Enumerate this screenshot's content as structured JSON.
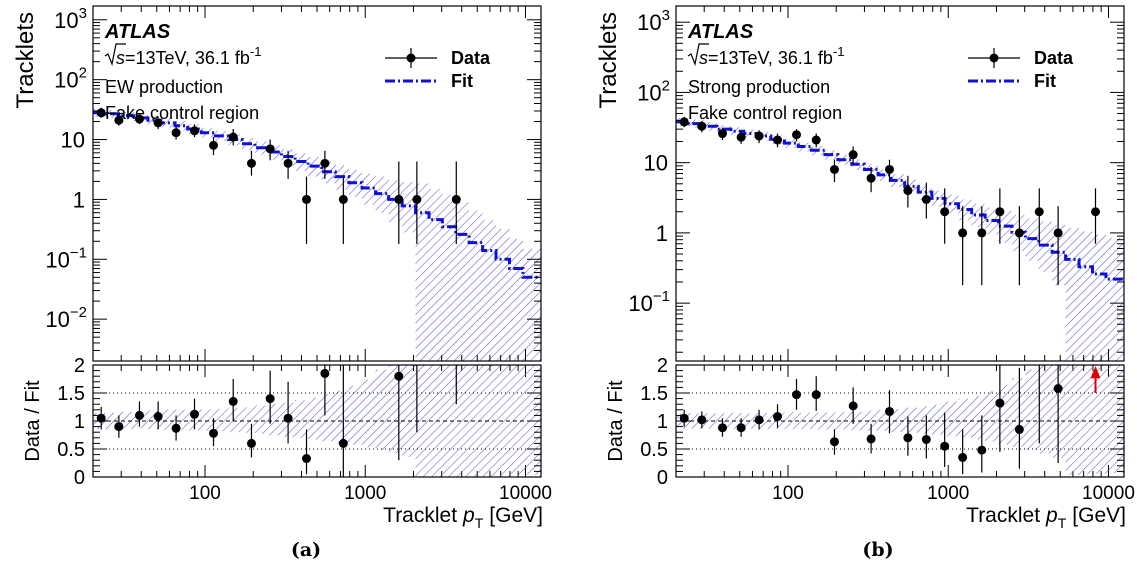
{
  "chart_data": [
    {
      "type": "scatter",
      "caption": "(a)",
      "atlas": "ATLAS",
      "sqrt_s": "s",
      "energy": "=13TeV, 36.1 fb",
      "lumi_sup": "-1",
      "process": "EW production",
      "region": "Fake control region",
      "legend": {
        "data": "Data",
        "fit": "Fit"
      },
      "ylabel": "Tracklets",
      "ratio_ylabel": "Data / Fit",
      "xlabel_main": "Tracklet",
      "xlabel_var": "p",
      "xlabel_sub": "T",
      "xlabel_unit": "[GeV]",
      "x_log": true,
      "y_log": true,
      "xlim": [
        20,
        12500
      ],
      "ylim": [
        0.002,
        1700
      ],
      "ratio_ylim": [
        0,
        2
      ],
      "y_ticks": [
        {
          "v": 0.01,
          "m": "10",
          "e": "−2"
        },
        {
          "v": 0.1,
          "m": "10",
          "e": "−1"
        },
        {
          "v": 1,
          "m": "1",
          "e": ""
        },
        {
          "v": 10,
          "m": "10",
          "e": ""
        },
        {
          "v": 100,
          "m": "10",
          "e": "2"
        },
        {
          "v": 1000,
          "m": "10",
          "e": "3"
        }
      ],
      "x_ticks": [
        {
          "v": 100,
          "label": "100"
        },
        {
          "v": 1000,
          "label": "1000"
        },
        {
          "v": 10000,
          "label": "10000"
        }
      ],
      "ratio_ticks": [
        {
          "v": 0,
          "label": "0"
        },
        {
          "v": 0.5,
          "label": "0.5"
        },
        {
          "v": 1,
          "label": "1"
        },
        {
          "v": 1.5,
          "label": "1.5"
        },
        {
          "v": 2,
          "label": "2"
        }
      ],
      "fit_edges": [
        20,
        24,
        30,
        36,
        44,
        53,
        65,
        78,
        95,
        116,
        140,
        170,
        205,
        250,
        300,
        365,
        440,
        535,
        650,
        790,
        955,
        1160,
        1400,
        1700,
        2060,
        2500,
        3030,
        3670,
        4450,
        5400,
        6550,
        7950,
        9640,
        12500
      ],
      "fit_values": [
        28,
        27,
        25,
        23,
        21,
        19,
        17,
        15,
        13,
        11.5,
        10,
        8.5,
        7.3,
        6.2,
        5.2,
        4.3,
        3.6,
        2.9,
        2.4,
        1.9,
        1.55,
        1.25,
        1.0,
        0.78,
        0.6,
        0.46,
        0.35,
        0.26,
        0.19,
        0.14,
        0.1,
        0.07,
        0.05
      ],
      "fit_band_lo": [
        24,
        23,
        21.5,
        20,
        18,
        16,
        14.3,
        12.5,
        10.8,
        9.4,
        8,
        6.7,
        5.6,
        4.6,
        3.7,
        3.0,
        2.4,
        1.85,
        1.45,
        1.1,
        0.82,
        0.6,
        0.42,
        0.28,
        0.002,
        0.002,
        0.002,
        0.002,
        0.002,
        0.002,
        0.002,
        0.002,
        0.002
      ],
      "fit_band_hi": [
        32,
        31,
        29,
        27,
        25,
        23,
        20.5,
        18,
        15.7,
        14,
        12.3,
        10.6,
        9.3,
        8.1,
        6.9,
        5.9,
        5.1,
        4.3,
        3.7,
        3.1,
        2.7,
        2.4,
        2.1,
        1.95,
        1.85,
        1.5,
        1.2,
        0.9,
        0.65,
        0.45,
        0.32,
        0.22,
        0.15
      ],
      "data_points": [
        {
          "x": 22.5,
          "y": 28,
          "lo": 23,
          "hi": 34
        },
        {
          "x": 29,
          "y": 21,
          "lo": 17,
          "hi": 26
        },
        {
          "x": 39,
          "y": 22,
          "lo": 18,
          "hi": 27
        },
        {
          "x": 51,
          "y": 19,
          "lo": 15,
          "hi": 24
        },
        {
          "x": 66,
          "y": 13,
          "lo": 10,
          "hi": 17
        },
        {
          "x": 86,
          "y": 14,
          "lo": 11,
          "hi": 18
        },
        {
          "x": 113,
          "y": 8,
          "lo": 5.5,
          "hi": 11
        },
        {
          "x": 150,
          "y": 11,
          "lo": 8,
          "hi": 15
        },
        {
          "x": 195,
          "y": 4,
          "lo": 2.5,
          "hi": 6.5
        },
        {
          "x": 255,
          "y": 7,
          "lo": 4.5,
          "hi": 10
        },
        {
          "x": 330,
          "y": 4,
          "lo": 2.2,
          "hi": 6.5
        },
        {
          "x": 430,
          "y": 1,
          "lo": 0.18,
          "hi": 2.4
        },
        {
          "x": 560,
          "y": 4,
          "lo": 2.2,
          "hi": 6.5
        },
        {
          "x": 730,
          "y": 1,
          "lo": 0.18,
          "hi": 2.4
        },
        {
          "x": 1620,
          "y": 1,
          "lo": 0.18,
          "hi": 4.3
        },
        {
          "x": 2100,
          "y": 1,
          "lo": 0.18,
          "hi": 4.3
        },
        {
          "x": 3700,
          "y": 1,
          "lo": 0.18,
          "hi": 4.3
        }
      ],
      "ratio_points": [
        {
          "x": 22.5,
          "y": 1.05,
          "lo": 0.85,
          "hi": 1.25
        },
        {
          "x": 29,
          "y": 0.9,
          "lo": 0.7,
          "hi": 1.1
        },
        {
          "x": 39,
          "y": 1.1,
          "lo": 0.9,
          "hi": 1.35
        },
        {
          "x": 51,
          "y": 1.08,
          "lo": 0.85,
          "hi": 1.35
        },
        {
          "x": 66,
          "y": 0.87,
          "lo": 0.65,
          "hi": 1.1
        },
        {
          "x": 86,
          "y": 1.12,
          "lo": 0.85,
          "hi": 1.4
        },
        {
          "x": 113,
          "y": 0.78,
          "lo": 0.55,
          "hi": 1.05
        },
        {
          "x": 150,
          "y": 1.35,
          "lo": 1.0,
          "hi": 1.75
        },
        {
          "x": 195,
          "y": 0.6,
          "lo": 0.35,
          "hi": 0.95
        },
        {
          "x": 255,
          "y": 1.4,
          "lo": 0.95,
          "hi": 1.9
        },
        {
          "x": 330,
          "y": 1.05,
          "lo": 0.6,
          "hi": 1.7
        },
        {
          "x": 430,
          "y": 0.33,
          "lo": 0.05,
          "hi": 0.85
        },
        {
          "x": 560,
          "y": 1.85,
          "lo": 1.1,
          "hi": 2.0
        },
        {
          "x": 730,
          "y": 0.6,
          "lo": 0.0,
          "hi": 2.0
        },
        {
          "x": 1620,
          "y": 1.8,
          "lo": 0.3,
          "hi": 2.0
        },
        {
          "x": 2100,
          "y": null,
          "lo": 0.8,
          "hi": 2.0
        },
        {
          "x": 3700,
          "y": null,
          "lo": 1.3,
          "hi": 2.0
        }
      ]
    },
    {
      "type": "scatter",
      "caption": "(b)",
      "atlas": "ATLAS",
      "sqrt_s": "s",
      "energy": "=13TeV, 36.1 fb",
      "lumi_sup": "-1",
      "process": "Strong production",
      "region": "Fake control region",
      "legend": {
        "data": "Data",
        "fit": "Fit"
      },
      "ylabel": "Tracklets",
      "ratio_ylabel": "Data / Fit",
      "xlabel_main": "Tracklet",
      "xlabel_var": "p",
      "xlabel_sub": "T",
      "xlabel_unit": "[GeV]",
      "x_log": true,
      "y_log": true,
      "xlim": [
        20,
        12500
      ],
      "ylim": [
        0.015,
        1700
      ],
      "ratio_ylim": [
        0,
        2
      ],
      "y_ticks": [
        {
          "v": 0.1,
          "m": "10",
          "e": "−1"
        },
        {
          "v": 1,
          "m": "1",
          "e": ""
        },
        {
          "v": 10,
          "m": "10",
          "e": ""
        },
        {
          "v": 100,
          "m": "10",
          "e": "2"
        },
        {
          "v": 1000,
          "m": "10",
          "e": "3"
        }
      ],
      "x_ticks": [
        {
          "v": 100,
          "label": "100"
        },
        {
          "v": 1000,
          "label": "1000"
        },
        {
          "v": 10000,
          "label": "10000"
        }
      ],
      "ratio_ticks": [
        {
          "v": 0,
          "label": "0"
        },
        {
          "v": 0.5,
          "label": "0.5"
        },
        {
          "v": 1,
          "label": "1"
        },
        {
          "v": 1.5,
          "label": "1.5"
        },
        {
          "v": 2,
          "label": "2"
        }
      ],
      "fit_edges": [
        20,
        24,
        30,
        36,
        44,
        53,
        65,
        78,
        95,
        116,
        140,
        170,
        205,
        250,
        300,
        365,
        440,
        535,
        650,
        790,
        955,
        1160,
        1400,
        1700,
        2060,
        2500,
        3030,
        3670,
        4450,
        5400,
        6550,
        7950,
        9640,
        12500
      ],
      "fit_values": [
        38,
        36,
        33,
        30,
        28,
        26,
        24,
        21.5,
        19,
        17,
        15,
        13,
        11,
        9.5,
        8,
        6.7,
        5.6,
        4.6,
        3.8,
        3.1,
        2.6,
        2.15,
        1.8,
        1.5,
        1.25,
        1.02,
        0.83,
        0.67,
        0.53,
        0.42,
        0.33,
        0.26,
        0.22
      ],
      "fit_band_lo": [
        33,
        31,
        28.5,
        26,
        24,
        22.5,
        20.5,
        18.5,
        16.2,
        14.5,
        12.7,
        11,
        9.3,
        7.9,
        6.6,
        5.5,
        4.5,
        3.65,
        2.95,
        2.35,
        1.9,
        1.5,
        1.2,
        0.95,
        0.72,
        0.55,
        0.4,
        0.28,
        0.18,
        0.015,
        0.015,
        0.015,
        0.015
      ],
      "fit_band_hi": [
        43,
        41,
        37.5,
        34,
        32,
        29.5,
        27.5,
        24.5,
        22,
        19.5,
        17.3,
        15,
        12.8,
        11.1,
        9.5,
        8,
        6.8,
        5.7,
        4.8,
        4,
        3.5,
        3,
        2.6,
        2.3,
        2.05,
        1.8,
        1.6,
        1.45,
        1.3,
        1.18,
        1.05,
        0.95,
        0.85
      ],
      "data_points": [
        {
          "x": 22.5,
          "y": 38,
          "lo": 32,
          "hi": 45
        },
        {
          "x": 29,
          "y": 33,
          "lo": 27,
          "hi": 39
        },
        {
          "x": 39,
          "y": 26,
          "lo": 21,
          "hi": 31
        },
        {
          "x": 51,
          "y": 23,
          "lo": 18.5,
          "hi": 28
        },
        {
          "x": 66,
          "y": 24,
          "lo": 19,
          "hi": 29
        },
        {
          "x": 86,
          "y": 21,
          "lo": 16.5,
          "hi": 26
        },
        {
          "x": 113,
          "y": 25,
          "lo": 20,
          "hi": 30
        },
        {
          "x": 150,
          "y": 21,
          "lo": 16.5,
          "hi": 26
        },
        {
          "x": 195,
          "y": 8,
          "lo": 5.3,
          "hi": 11
        },
        {
          "x": 255,
          "y": 13,
          "lo": 9.5,
          "hi": 17
        },
        {
          "x": 330,
          "y": 6,
          "lo": 3.8,
          "hi": 8.7
        },
        {
          "x": 430,
          "y": 8,
          "lo": 5.3,
          "hi": 11
        },
        {
          "x": 560,
          "y": 4,
          "lo": 2.3,
          "hi": 6.5
        },
        {
          "x": 730,
          "y": 3,
          "lo": 1.6,
          "hi": 5.2
        },
        {
          "x": 950,
          "y": 2,
          "lo": 0.7,
          "hi": 4.3
        },
        {
          "x": 1230,
          "y": 1,
          "lo": 0.18,
          "hi": 2.4
        },
        {
          "x": 1620,
          "y": 1,
          "lo": 0.18,
          "hi": 2.4
        },
        {
          "x": 2100,
          "y": 2,
          "lo": 0.7,
          "hi": 4.3
        },
        {
          "x": 2780,
          "y": 1,
          "lo": 0.18,
          "hi": 2.4
        },
        {
          "x": 3700,
          "y": 2,
          "lo": 0.7,
          "hi": 4.3
        },
        {
          "x": 4850,
          "y": 1,
          "lo": 0.18,
          "hi": 2.4
        },
        {
          "x": 8300,
          "y": 2,
          "lo": 0.7,
          "hi": 4.3
        }
      ],
      "ratio_points": [
        {
          "x": 22.5,
          "y": 1.05,
          "lo": 0.9,
          "hi": 1.2
        },
        {
          "x": 29,
          "y": 1.02,
          "lo": 0.87,
          "hi": 1.17
        },
        {
          "x": 39,
          "y": 0.88,
          "lo": 0.72,
          "hi": 1.05
        },
        {
          "x": 51,
          "y": 0.88,
          "lo": 0.72,
          "hi": 1.05
        },
        {
          "x": 66,
          "y": 1.02,
          "lo": 0.85,
          "hi": 1.2
        },
        {
          "x": 86,
          "y": 1.08,
          "lo": 0.88,
          "hi": 1.3
        },
        {
          "x": 113,
          "y": 1.47,
          "lo": 1.2,
          "hi": 1.75
        },
        {
          "x": 150,
          "y": 1.47,
          "lo": 1.18,
          "hi": 1.8
        },
        {
          "x": 195,
          "y": 0.63,
          "lo": 0.4,
          "hi": 0.85
        },
        {
          "x": 255,
          "y": 1.27,
          "lo": 0.95,
          "hi": 1.6
        },
        {
          "x": 330,
          "y": 0.68,
          "lo": 0.42,
          "hi": 0.95
        },
        {
          "x": 430,
          "y": 1.17,
          "lo": 0.78,
          "hi": 1.55
        },
        {
          "x": 560,
          "y": 0.7,
          "lo": 0.38,
          "hi": 1.08
        },
        {
          "x": 730,
          "y": 0.67,
          "lo": 0.33,
          "hi": 1.1
        },
        {
          "x": 950,
          "y": 0.55,
          "lo": 0.18,
          "hi": 1.15
        },
        {
          "x": 1230,
          "y": 0.35,
          "lo": 0.05,
          "hi": 0.85
        },
        {
          "x": 1620,
          "y": 0.48,
          "lo": 0.08,
          "hi": 1.1
        },
        {
          "x": 2100,
          "y": 1.32,
          "lo": 0.45,
          "hi": 2.0
        },
        {
          "x": 2780,
          "y": 0.85,
          "lo": 0.15,
          "hi": 1.95
        },
        {
          "x": 3700,
          "y": null,
          "lo": 0.6,
          "hi": 2.0
        },
        {
          "x": 4850,
          "y": 1.58,
          "lo": 0.25,
          "hi": 2.0
        },
        {
          "x": 8300,
          "y": null,
          "lo": null,
          "hi": null,
          "arrow": true
        }
      ]
    }
  ]
}
